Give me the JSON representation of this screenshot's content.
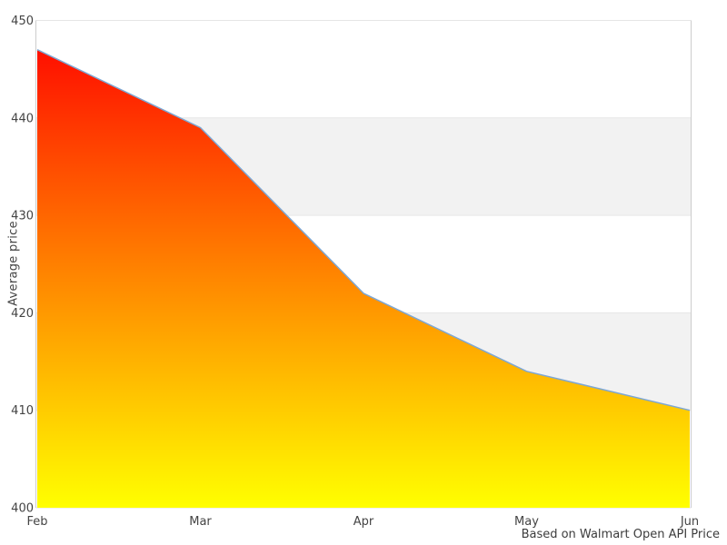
{
  "chart_data": {
    "type": "area",
    "title": "",
    "categories": [
      "Feb",
      "Mar",
      "Apr",
      "May",
      "Jun"
    ],
    "series": [
      {
        "name": "Average price",
        "values": [
          447,
          439,
          422,
          414,
          410
        ]
      }
    ],
    "xlabel": "",
    "ylabel": "Average price",
    "ylim": [
      400,
      450
    ],
    "yticks": [
      400,
      410,
      420,
      430,
      440,
      450
    ],
    "caption": "Based on Walmart Open API Price",
    "legend": "none",
    "grid": "alternating-horizontal-bands",
    "colors": {
      "area_gradient_top": "#ff0000",
      "area_gradient_bottom": "#ffff00",
      "line": "#7da7d4",
      "band_fill": "#f2f2f2",
      "gridline": "#e6e6e6",
      "plot_border": "#cccccc",
      "axis_text": "#444444",
      "background": "#ffffff"
    }
  }
}
